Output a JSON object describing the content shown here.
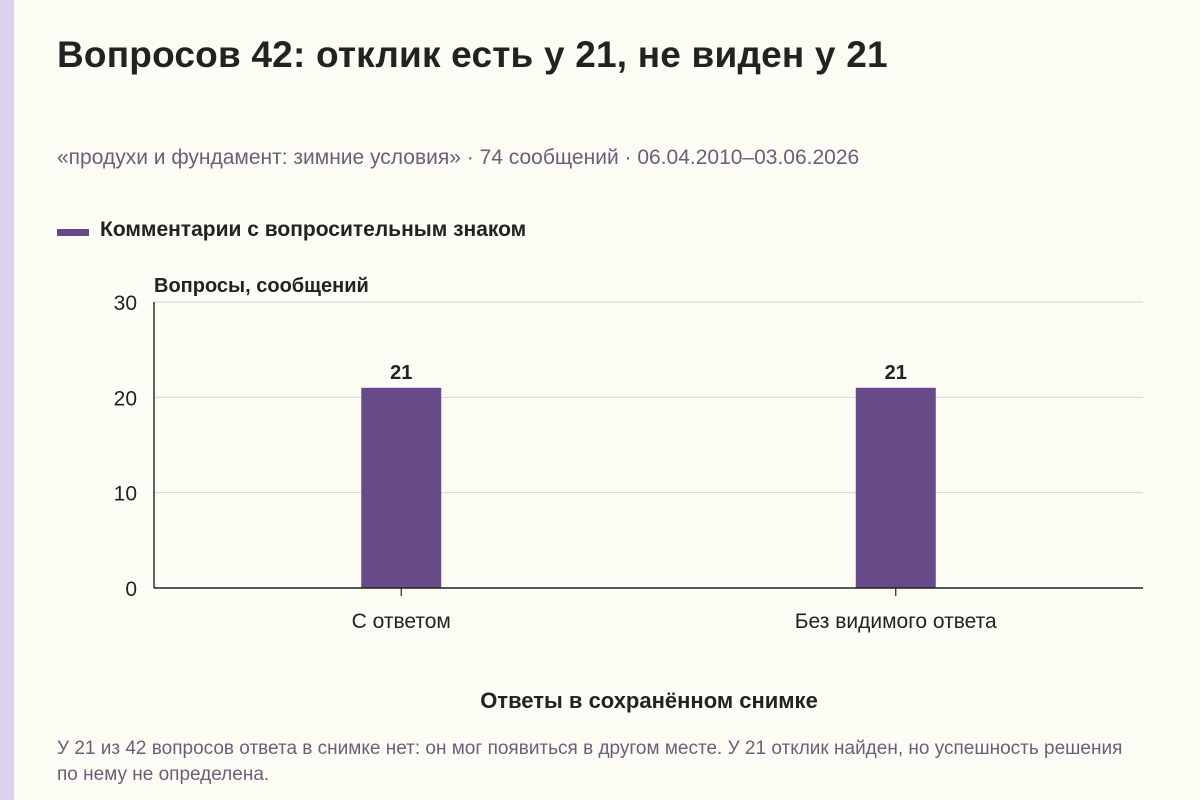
{
  "title": "Вопросов 42: отклик есть у 21, не виден у 21",
  "subtitle": "«продухи и фундамент: зимние условия» · 74 сообщений · 06.04.2010–03.06.2026",
  "note": "У 21 из 42 вопросов ответа в снимке нет: он мог появиться в другом месте. У 21 отклик найден, но успешность решения по нему не определена.",
  "colors": {
    "bar": "#674a88",
    "accent": "#dcd0ec",
    "grid": "#d4d4d4",
    "axis": "#222222",
    "muted_text": "#6a5f78"
  },
  "chart_data": {
    "type": "bar",
    "title": "Вопросов 42: отклик есть у 21, не виден у 21",
    "ylabel": "Вопросы, сообщений",
    "xlabel": "Ответы в сохранённом снимке",
    "categories": [
      "С ответом",
      "Без видимого ответа"
    ],
    "series": [
      {
        "name": "Комментарии с вопросительным знаком",
        "values": [
          21,
          21
        ]
      }
    ],
    "ylim": [
      0,
      30
    ],
    "yticks": [
      0,
      10,
      20,
      30
    ],
    "grid": true,
    "legend": "top-left",
    "data_labels": true
  }
}
